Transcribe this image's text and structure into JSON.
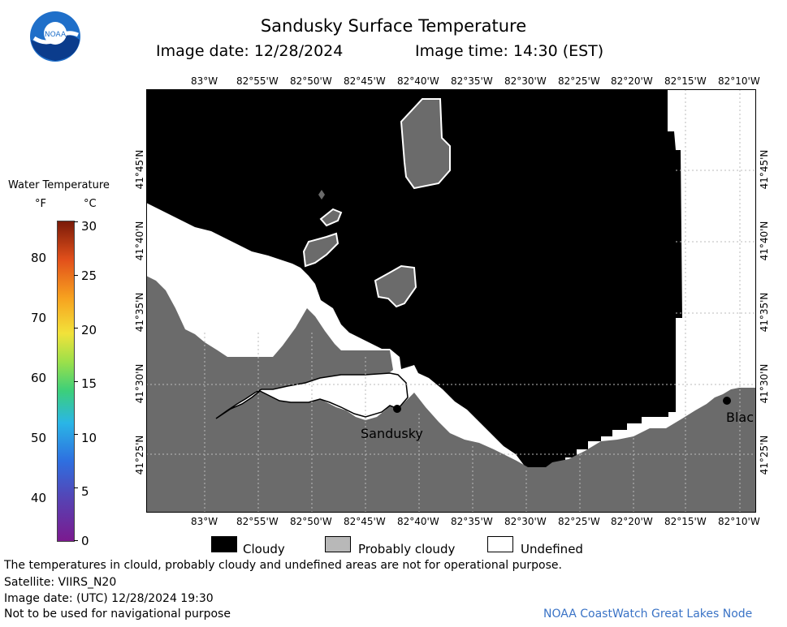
{
  "header": {
    "logo_text": "NOAA",
    "title": "Sandusky Surface Temperature",
    "image_date": "Image date: 12/28/2024",
    "image_time": "Image time: 14:30 (EST)"
  },
  "axes": {
    "lon_labels": [
      "83°W",
      "82°55'W",
      "82°50'W",
      "82°45'W",
      "82°40'W",
      "82°35'W",
      "82°30'W",
      "82°25'W",
      "82°20'W",
      "82°15'W",
      "82°10'W"
    ],
    "lat_labels": [
      "41°45'N",
      "41°40'N",
      "41°35'N",
      "41°30'N",
      "41°25'N"
    ]
  },
  "map": {
    "colors": {
      "land": "#6b6b6b",
      "cloud": "#000000",
      "undefined": "#ffffff",
      "grid": "#bbbbbb"
    },
    "place_labels": [
      "Sandusky",
      "Blac"
    ]
  },
  "legend": {
    "heading": "Water Temperature",
    "unit_f": "°F",
    "unit_c": "°C",
    "f_ticks": [
      "80",
      "70",
      "60",
      "50",
      "40"
    ],
    "c_ticks": [
      "30",
      "25",
      "20",
      "15",
      "10",
      "5",
      "0"
    ],
    "colors": [
      "#7b1a8f",
      "#2e6fe0",
      "#3ccf7a",
      "#f2e23a",
      "#f7a21f",
      "#7a1a08"
    ]
  },
  "key": {
    "cloudy": "Cloudy",
    "probably_cloudy": "Probably cloudy",
    "undefined": "Undefined"
  },
  "footer": {
    "disclaimer": "The temperatures in clould, probably cloudy and undefined areas are not for operational purpose.",
    "satellite": "Satellite: VIIRS_N20",
    "utc_date": "Image date: (UTC) 12/28/2024  19:30",
    "nav_warning": "Not to be used for navigational purpose",
    "credit": "NOAA CoastWatch Great Lakes Node"
  }
}
